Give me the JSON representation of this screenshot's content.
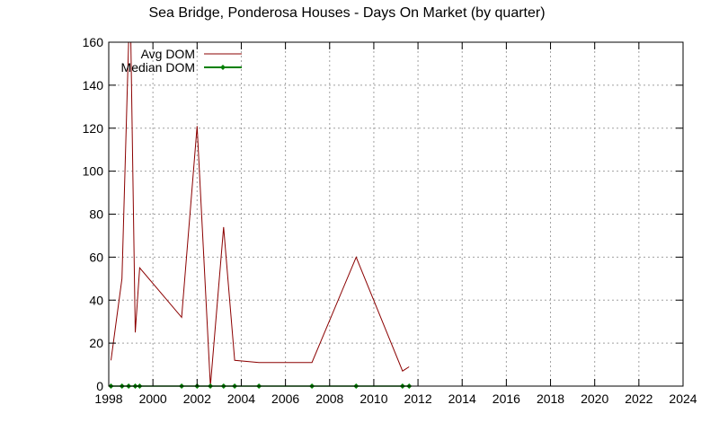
{
  "chart_data": {
    "type": "line",
    "title": "Sea Bridge, Ponderosa Houses - Days On Market (by quarter)",
    "xlabel": "",
    "ylabel": "",
    "xlim": [
      1998,
      2024
    ],
    "ylim": [
      0,
      160
    ],
    "xticks": [
      1998,
      2000,
      2002,
      2004,
      2006,
      2008,
      2010,
      2012,
      2014,
      2016,
      2018,
      2020,
      2022,
      2024
    ],
    "yticks": [
      0,
      20,
      40,
      60,
      80,
      100,
      120,
      140,
      160
    ],
    "grid": true,
    "legend_position": "top-left",
    "series": [
      {
        "name": "Avg DOM",
        "color": "#8b0000",
        "marker": "none",
        "points": [
          [
            1998.1,
            12
          ],
          [
            1998.6,
            50
          ],
          [
            1998.9,
            160
          ],
          [
            1999.0,
            160
          ],
          [
            1999.2,
            25
          ],
          [
            1999.4,
            55
          ],
          [
            2001.3,
            32
          ],
          [
            2002.0,
            121
          ],
          [
            2002.6,
            0
          ],
          [
            2003.2,
            74
          ],
          [
            2003.7,
            12
          ],
          [
            2004.8,
            11
          ],
          [
            2007.2,
            11
          ],
          [
            2009.2,
            60
          ],
          [
            2011.3,
            7
          ],
          [
            2011.6,
            9
          ]
        ]
      },
      {
        "name": "Median DOM",
        "color": "#008000",
        "marker": "diamond",
        "points": [
          [
            1998.1,
            0
          ],
          [
            1998.6,
            0
          ],
          [
            1998.9,
            0
          ],
          [
            1999.2,
            0
          ],
          [
            1999.4,
            0
          ],
          [
            2001.3,
            0
          ],
          [
            2002.0,
            0
          ],
          [
            2002.6,
            0
          ],
          [
            2003.2,
            0
          ],
          [
            2003.7,
            0
          ],
          [
            2004.8,
            0
          ],
          [
            2007.2,
            0
          ],
          [
            2009.2,
            0
          ],
          [
            2011.3,
            0
          ],
          [
            2011.6,
            0
          ]
        ]
      }
    ]
  }
}
